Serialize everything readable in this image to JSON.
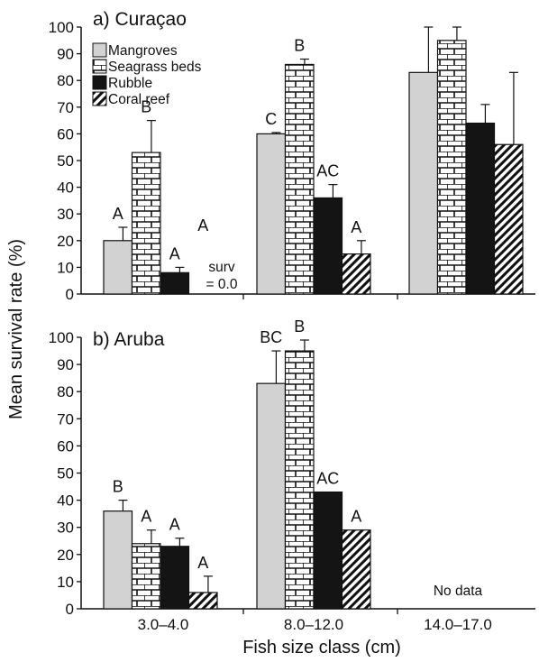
{
  "chart_data": [
    {
      "type": "bar",
      "title": "a) Curaçao",
      "categories": [
        "3.0–4.0",
        "8.0–12.0",
        "14.0–17.0"
      ],
      "ylim": [
        0,
        100
      ],
      "yticks": [
        0,
        10,
        20,
        30,
        40,
        50,
        60,
        70,
        80,
        90,
        100
      ],
      "series": [
        {
          "name": "Mangroves",
          "values": [
            20,
            60,
            83
          ],
          "errors": [
            5,
            0.5,
            17
          ],
          "labels": [
            "A",
            "C",
            ""
          ]
        },
        {
          "name": "Seagrass beds",
          "values": [
            53,
            86,
            95
          ],
          "errors": [
            12,
            2,
            5
          ],
          "labels": [
            "B",
            "B",
            ""
          ]
        },
        {
          "name": "Rubble",
          "values": [
            8,
            36,
            64
          ],
          "errors": [
            2,
            5,
            7
          ],
          "labels": [
            "A",
            "AC",
            ""
          ]
        },
        {
          "name": "Coral reef",
          "values": [
            0,
            15,
            56
          ],
          "errors": [
            0,
            5,
            27
          ],
          "labels": [
            "A",
            "A",
            ""
          ]
        }
      ],
      "annotations": [
        {
          "text_lines": [
            "surv",
            "= 0.0"
          ]
        }
      ],
      "legend": "top-left",
      "grid": false
    },
    {
      "type": "bar",
      "title": "b) Aruba",
      "categories": [
        "3.0–4.0",
        "8.0–12.0",
        "14.0–17.0"
      ],
      "ylim": [
        0,
        100
      ],
      "yticks": [
        0,
        10,
        20,
        30,
        40,
        50,
        60,
        70,
        80,
        90,
        100
      ],
      "series": [
        {
          "name": "Mangroves",
          "values": [
            36,
            83,
            null
          ],
          "errors": [
            4,
            12,
            null
          ],
          "labels": [
            "B",
            "BC",
            ""
          ]
        },
        {
          "name": "Seagrass beds",
          "values": [
            24,
            95,
            null
          ],
          "errors": [
            5,
            4,
            null
          ],
          "labels": [
            "A",
            "B",
            ""
          ]
        },
        {
          "name": "Rubble",
          "values": [
            23,
            43,
            null
          ],
          "errors": [
            3,
            0,
            null
          ],
          "labels": [
            "A",
            "AC",
            ""
          ]
        },
        {
          "name": "Coral reef",
          "values": [
            6,
            29,
            null
          ],
          "errors": [
            6,
            0,
            null
          ],
          "labels": [
            "A",
            "A",
            ""
          ]
        }
      ],
      "annotations": [
        {
          "text": "No data"
        }
      ],
      "grid": false
    }
  ],
  "axes": {
    "ylabel": "Mean survival rate (%)",
    "xlabel": "Fish size class (cm)"
  },
  "colors": {
    "mangroves": "#d2d2d2",
    "seagrass_fill": "#ffffff",
    "rubble": "#141414",
    "outline": "#111111"
  }
}
